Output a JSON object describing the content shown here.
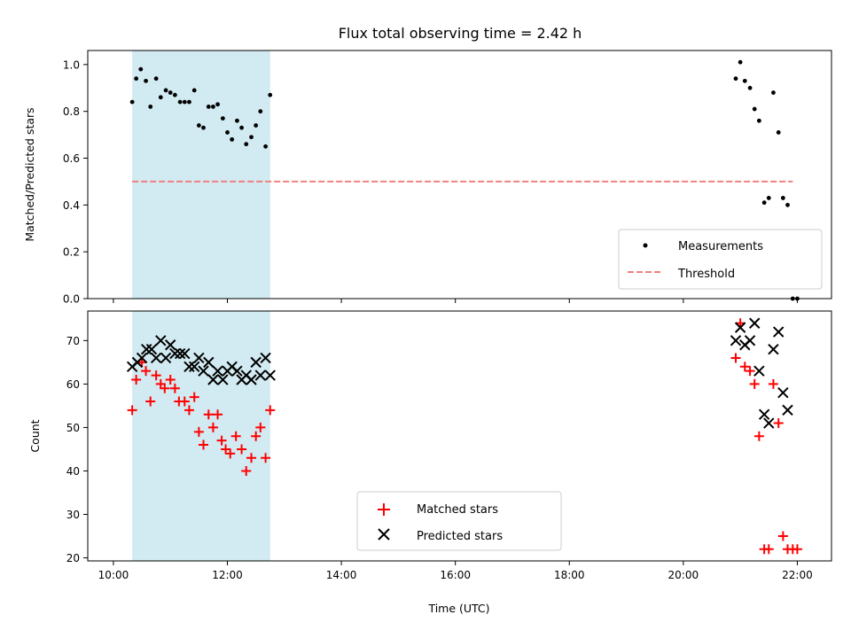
{
  "title": "Flux total observing time = 2.42 h",
  "chart_data": [
    {
      "type": "scatter",
      "panel": "top",
      "ylabel": "Matched/Predicted stars",
      "xlabel": "",
      "ylim": [
        0.0,
        1.06
      ],
      "yticks": [
        "0.0",
        "0.2",
        "0.4",
        "0.6",
        "0.8",
        "1.0"
      ],
      "ytick_values": [
        0.0,
        0.2,
        0.4,
        0.6,
        0.8,
        1.0
      ],
      "xlim_hours": [
        9.55,
        22.6
      ],
      "xtick_hours": [
        10,
        12,
        14,
        16,
        18,
        20,
        22
      ],
      "xticks": [
        "10:00",
        "12:00",
        "14:00",
        "16:00",
        "18:00",
        "20:00",
        "22:00"
      ],
      "shaded_span_hours": [
        10.33,
        12.75
      ],
      "shaded_color": "#add8e6",
      "legend_position": "lower right",
      "series": [
        {
          "name": "Measurements",
          "marker": "dot",
          "color": "#000000",
          "x_hours": [
            10.33,
            10.4,
            10.48,
            10.57,
            10.65,
            10.75,
            10.83,
            10.92,
            11.0,
            11.08,
            11.17,
            11.25,
            11.33,
            11.42,
            11.5,
            11.58,
            11.67,
            11.75,
            11.83,
            11.92,
            12.0,
            12.08,
            12.17,
            12.25,
            12.33,
            12.42,
            12.5,
            12.58,
            12.67,
            12.75,
            20.92,
            21.0,
            21.08,
            21.17,
            21.25,
            21.33,
            21.42,
            21.5,
            21.58,
            21.67,
            21.75,
            21.83,
            21.92,
            22.0
          ],
          "values": [
            0.84,
            0.94,
            0.98,
            0.93,
            0.82,
            0.94,
            0.86,
            0.89,
            0.88,
            0.87,
            0.84,
            0.84,
            0.84,
            0.89,
            0.74,
            0.73,
            0.82,
            0.82,
            0.83,
            0.77,
            0.71,
            0.68,
            0.76,
            0.73,
            0.66,
            0.69,
            0.74,
            0.8,
            0.65,
            0.87,
            0.94,
            1.01,
            0.93,
            0.9,
            0.81,
            0.76,
            0.41,
            0.43,
            0.88,
            0.71,
            0.43,
            0.4,
            0.0,
            0.0
          ]
        },
        {
          "name": "Threshold",
          "marker": "dashed-line",
          "color": "#f08080",
          "x_hours": [
            10.33,
            21.92
          ],
          "values": [
            0.5,
            0.5
          ]
        }
      ]
    },
    {
      "type": "scatter",
      "panel": "bottom",
      "ylabel": "Count",
      "xlabel": "Time (UTC)",
      "ylim": [
        19.3,
        76.8
      ],
      "yticks": [
        "20",
        "30",
        "40",
        "50",
        "60",
        "70"
      ],
      "ytick_values": [
        20,
        30,
        40,
        50,
        60,
        70
      ],
      "xlim_hours": [
        9.55,
        22.6
      ],
      "xtick_hours": [
        10,
        12,
        14,
        16,
        18,
        20,
        22
      ],
      "xticks": [
        "10:00",
        "12:00",
        "14:00",
        "16:00",
        "18:00",
        "20:00",
        "22:00"
      ],
      "shaded_span_hours": [
        10.33,
        12.75
      ],
      "shaded_color": "#add8e6",
      "legend_position": "lower center",
      "series": [
        {
          "name": "Matched stars",
          "marker": "plus",
          "color": "#ff0000",
          "x_hours": [
            10.33,
            10.4,
            10.5,
            10.57,
            10.65,
            10.75,
            10.83,
            10.9,
            11.0,
            11.08,
            11.15,
            11.25,
            11.33,
            11.42,
            11.5,
            11.58,
            11.67,
            11.75,
            11.83,
            11.9,
            11.97,
            12.05,
            12.15,
            12.25,
            12.33,
            12.42,
            12.5,
            12.58,
            12.67,
            12.75,
            20.92,
            21.0,
            21.08,
            21.17,
            21.25,
            21.33,
            21.42,
            21.5,
            21.58,
            21.67,
            21.75,
            21.83,
            21.92,
            22.0
          ],
          "values": [
            54,
            61,
            65,
            63,
            56,
            62,
            60,
            59,
            61,
            59,
            56,
            56,
            54,
            57,
            49,
            46,
            53,
            50,
            53,
            47,
            45,
            44,
            48,
            45,
            40,
            43,
            48,
            50,
            43,
            54,
            66,
            74,
            64,
            63,
            60,
            48,
            22,
            22,
            60,
            51,
            25,
            22,
            22,
            22
          ]
        },
        {
          "name": "Predicted stars",
          "marker": "x",
          "color": "#000000",
          "x_hours": [
            10.33,
            10.42,
            10.5,
            10.58,
            10.67,
            10.75,
            10.83,
            10.92,
            11.0,
            11.08,
            11.17,
            11.25,
            11.33,
            11.42,
            11.5,
            11.58,
            11.67,
            11.75,
            11.83,
            11.92,
            12.0,
            12.08,
            12.17,
            12.25,
            12.33,
            12.42,
            12.5,
            12.58,
            12.67,
            12.75,
            20.92,
            21.0,
            21.08,
            21.17,
            21.25,
            21.33,
            21.42,
            21.5,
            21.58,
            21.67,
            21.75,
            21.83
          ],
          "values": [
            64,
            65,
            66,
            68,
            68,
            66,
            70,
            66,
            69,
            67,
            67,
            67,
            64,
            64,
            66,
            63,
            65,
            61,
            63,
            61,
            63,
            64,
            63,
            61,
            62,
            61,
            65,
            62,
            66,
            62,
            70,
            73,
            69,
            70,
            74,
            63,
            53,
            51,
            68,
            72,
            58,
            54
          ]
        }
      ]
    }
  ]
}
